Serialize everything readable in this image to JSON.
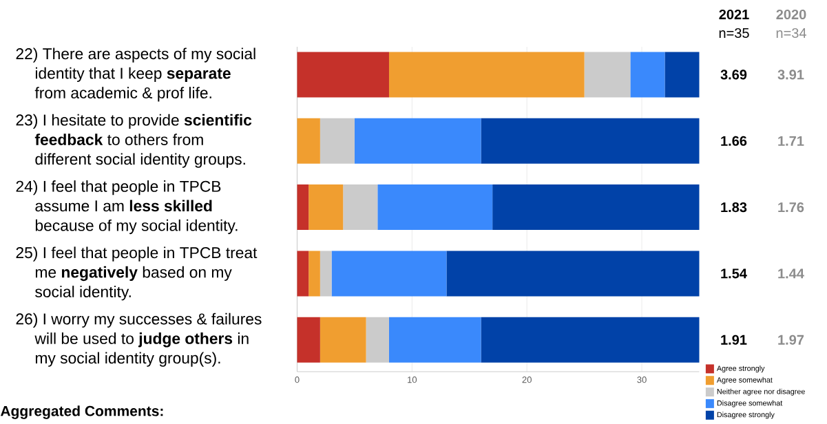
{
  "chart_data": {
    "type": "bar",
    "orientation": "horizontal",
    "stacked": true,
    "categories": [
      "22) There are aspects of my social identity that I keep **separate** from academic & prof life.",
      "23) I hesitate to provide **scientific feedback** to others from different social identity groups.",
      "24) I feel that people in TPCB assume I am **less skilled** because of my social identity.",
      "25) I feel that people in TPCB treat me **negatively** based on my social identity.",
      "26) I worry my successes & failures will be used to **judge others** in my social identity group(s)."
    ],
    "series": [
      {
        "name": "Agree strongly",
        "color": "#c5312a",
        "values": [
          8,
          0,
          1,
          1,
          2
        ]
      },
      {
        "name": "Agree somewhat",
        "color": "#f09e30",
        "values": [
          17,
          2,
          3,
          1,
          4
        ]
      },
      {
        "name": "Neither agree nor disagree",
        "color": "#cbcbcb",
        "values": [
          4,
          3,
          3,
          1,
          2
        ]
      },
      {
        "name": "Disagree somewhat",
        "color": "#3a89fc",
        "values": [
          3,
          11,
          10,
          10,
          8
        ]
      },
      {
        "name": "Disagree strongly",
        "color": "#0142a8",
        "values": [
          3,
          19,
          18,
          22,
          19
        ]
      }
    ],
    "xlim": [
      0,
      35
    ],
    "xticks": [
      0,
      10,
      20,
      30
    ],
    "grid": "x",
    "legend": "bottom right",
    "annotations": [
      "2021",
      "n=35",
      "2020",
      "n=34",
      "3.69",
      "3.91",
      "1.66",
      "1.71",
      "1.83",
      "1.76",
      "1.54",
      "1.44",
      "1.91",
      "1.97",
      "Aggregated Comments:"
    ]
  }
}
